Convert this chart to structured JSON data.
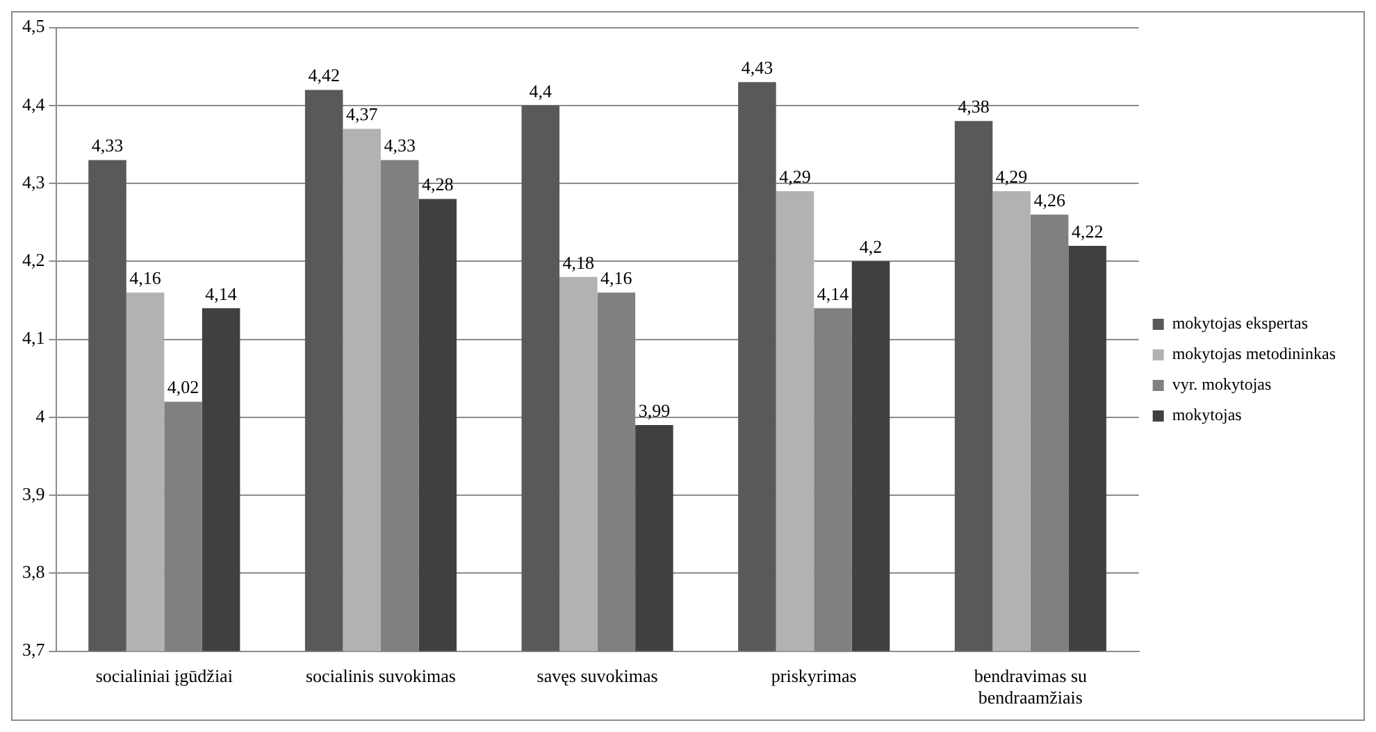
{
  "chart_data": {
    "type": "bar",
    "categories": [
      "socialiniai įgūdžiai",
      "socialinis suvokimas",
      "savęs suvokimas",
      "priskyrimas",
      "bendravimas su bendraamžiais"
    ],
    "series": [
      {
        "name": "mokytojas ekspertas",
        "color": "#595959",
        "values": [
          4.33,
          4.42,
          4.4,
          4.43,
          4.38
        ],
        "value_labels": [
          "4,33",
          "4,42",
          "4,4",
          "4,43",
          "4,38"
        ]
      },
      {
        "name": "mokytojas metodininkas",
        "color": "#b2b2b2",
        "values": [
          4.16,
          4.37,
          4.18,
          4.29,
          4.29
        ],
        "value_labels": [
          "4,16",
          "4,37",
          "4,18",
          "4,29",
          "4,29"
        ]
      },
      {
        "name": "vyr. mokytojas",
        "color": "#808080",
        "values": [
          4.02,
          4.33,
          4.16,
          4.14,
          4.26
        ],
        "value_labels": [
          "4,02",
          "4,33",
          "4,16",
          "4,14",
          "4,26"
        ]
      },
      {
        "name": "mokytojas",
        "color": "#404040",
        "values": [
          4.14,
          4.28,
          3.99,
          4.2,
          4.22
        ],
        "value_labels": [
          "4,14",
          "4,28",
          "3,99",
          "4,2",
          "4,22"
        ]
      }
    ],
    "ylim": [
      3.7,
      4.5
    ],
    "yticks": [
      {
        "value": 3.7,
        "label": "3,7"
      },
      {
        "value": 3.8,
        "label": "3,8"
      },
      {
        "value": 3.9,
        "label": "3,9"
      },
      {
        "value": 4,
        "label": "4"
      },
      {
        "value": 4.1,
        "label": "4,1"
      },
      {
        "value": 4.2,
        "label": "4,2"
      },
      {
        "value": 4.3,
        "label": "4,3"
      },
      {
        "value": 4.4,
        "label": "4,4"
      },
      {
        "value": 4.5,
        "label": "4,5"
      }
    ],
    "grid": "y",
    "legend": "right"
  }
}
